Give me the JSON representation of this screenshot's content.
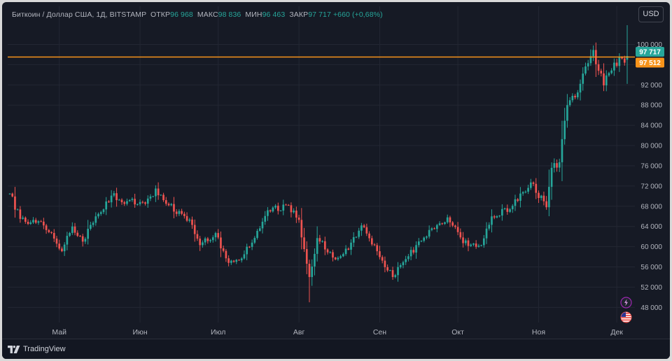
{
  "header": {
    "symbol": "Биткоин / Доллар США, 1Д, BITSTAMP",
    "open_label": "ОТКР",
    "open_value": "96 968",
    "high_label": "МАКС",
    "high_value": "98 836",
    "low_label": "МИН",
    "low_value": "96 463",
    "close_label": "ЗАКР",
    "close_value": "97 717",
    "change": "+660 (+0,68%)"
  },
  "currency_button": "USD",
  "footer": {
    "brand": "TradingView"
  },
  "colors": {
    "up": "#26a69a",
    "down": "#ef5350",
    "price_line": "#f7931a",
    "background": "#161a25",
    "grid": "#232733",
    "text": "#b2b5be"
  },
  "icons": [
    "lightning-icon",
    "us-flag-icon"
  ],
  "chart_data": {
    "type": "candlestick",
    "title": "Биткоин / Доллар США, 1Д, BITSTAMP",
    "ylim": [
      45000,
      104500
    ],
    "y_ticks": [
      48000,
      52000,
      56000,
      60000,
      64000,
      68000,
      72000,
      76000,
      80000,
      84000,
      88000,
      92000,
      96000,
      100000
    ],
    "y_tick_labels": [
      "48 000",
      "52 000",
      "56 000",
      "60 000",
      "64 000",
      "68 000",
      "72 000",
      "76 000",
      "80 000",
      "84 000",
      "88 000",
      "92 000",
      "96 000",
      "100 000"
    ],
    "x_tick_labels": [
      "Май",
      "Июн",
      "Июл",
      "Авг",
      "Сен",
      "Окт",
      "Ноя",
      "Дек"
    ],
    "x_tick_dates": [
      "2024-05-01",
      "2024-06-01",
      "2024-07-01",
      "2024-08-01",
      "2024-09-01",
      "2024-10-01",
      "2024-11-01",
      "2024-12-01"
    ],
    "x_range": [
      "2024-04-12",
      "2024-12-05"
    ],
    "price_labels": [
      {
        "label": "97 717",
        "value": 97717,
        "color": "#26a69a"
      },
      {
        "label": "97 512",
        "value": 97512,
        "color": "#f7931a"
      }
    ],
    "horizontal_line": {
      "value": 97512,
      "color": "#f7931a"
    },
    "close_anchors": [
      [
        "2024-04-12",
        70500
      ],
      [
        "2024-04-16",
        65500
      ],
      [
        "2024-04-20",
        64800
      ],
      [
        "2024-04-25",
        64200
      ],
      [
        "2024-04-30",
        60600
      ],
      [
        "2024-05-02",
        59100
      ],
      [
        "2024-05-06",
        64000
      ],
      [
        "2024-05-10",
        61000
      ],
      [
        "2024-05-15",
        66000
      ],
      [
        "2024-05-21",
        70100
      ],
      [
        "2024-05-27",
        69000
      ],
      [
        "2024-06-03",
        68500
      ],
      [
        "2024-06-07",
        71500
      ],
      [
        "2024-06-12",
        68200
      ],
      [
        "2024-06-17",
        66500
      ],
      [
        "2024-06-21",
        64300
      ],
      [
        "2024-06-24",
        60300
      ],
      [
        "2024-06-30",
        62700
      ],
      [
        "2024-07-05",
        56800
      ],
      [
        "2024-07-09",
        57300
      ],
      [
        "2024-07-14",
        60800
      ],
      [
        "2024-07-20",
        67200
      ],
      [
        "2024-07-28",
        68200
      ],
      [
        "2024-08-01",
        65300
      ],
      [
        "2024-08-05",
        54000
      ],
      [
        "2024-08-08",
        61700
      ],
      [
        "2024-08-15",
        57500
      ],
      [
        "2024-08-20",
        59400
      ],
      [
        "2024-08-25",
        64200
      ],
      [
        "2024-08-31",
        59100
      ],
      [
        "2024-09-06",
        54000
      ],
      [
        "2024-09-12",
        58100
      ],
      [
        "2024-09-20",
        63300
      ],
      [
        "2024-09-27",
        65800
      ],
      [
        "2024-10-03",
        60700
      ],
      [
        "2024-10-10",
        60300
      ],
      [
        "2024-10-14",
        66000
      ],
      [
        "2024-10-21",
        67400
      ],
      [
        "2024-10-29",
        72700
      ],
      [
        "2024-11-04",
        67800
      ],
      [
        "2024-11-06",
        75600
      ],
      [
        "2024-11-09",
        76700
      ],
      [
        "2024-11-12",
        88000
      ],
      [
        "2024-11-16",
        90500
      ],
      [
        "2024-11-22",
        98900
      ],
      [
        "2024-11-26",
        91900
      ],
      [
        "2024-11-30",
        96400
      ],
      [
        "2024-12-05",
        97717
      ]
    ]
  }
}
